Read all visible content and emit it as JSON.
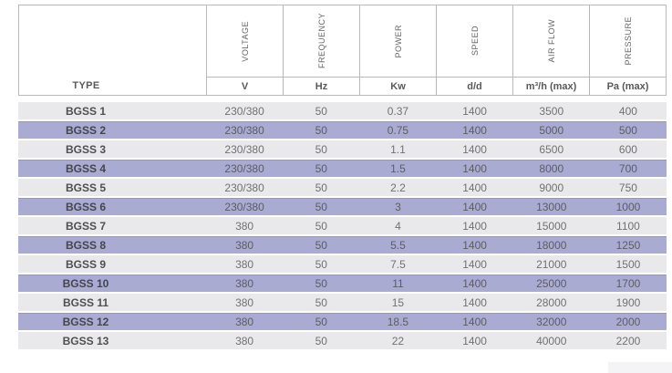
{
  "table": {
    "type_header": "TYPE",
    "columns": [
      {
        "label": "VOLTAGE",
        "unit": "V"
      },
      {
        "label": "FREQUENCY",
        "unit": "Hz"
      },
      {
        "label": "POWER",
        "unit": "Kw"
      },
      {
        "label": "SPEED",
        "unit": "d/d"
      },
      {
        "label": "AIR FLOW",
        "unit": "m³/h (max)"
      },
      {
        "label": "PRESSURE",
        "unit": "Pa (max)"
      }
    ],
    "rows": [
      {
        "type": "BGSS 1",
        "values": [
          "230/380",
          "50",
          "0.37",
          "1400",
          "3500",
          "400"
        ]
      },
      {
        "type": "BGSS 2",
        "values": [
          "230/380",
          "50",
          "0.75",
          "1400",
          "5000",
          "500"
        ]
      },
      {
        "type": "BGSS 3",
        "values": [
          "230/380",
          "50",
          "1.1",
          "1400",
          "6500",
          "600"
        ]
      },
      {
        "type": "BGSS 4",
        "values": [
          "230/380",
          "50",
          "1.5",
          "1400",
          "8000",
          "700"
        ]
      },
      {
        "type": "BGSS 5",
        "values": [
          "230/380",
          "50",
          "2.2",
          "1400",
          "9000",
          "750"
        ]
      },
      {
        "type": "BGSS 6",
        "values": [
          "230/380",
          "50",
          "3",
          "1400",
          "13000",
          "1000"
        ]
      },
      {
        "type": "BGSS 7",
        "values": [
          "380",
          "50",
          "4",
          "1400",
          "15000",
          "1100"
        ]
      },
      {
        "type": "BGSS 8",
        "values": [
          "380",
          "50",
          "5.5",
          "1400",
          "18000",
          "1250"
        ]
      },
      {
        "type": "BGSS 9",
        "values": [
          "380",
          "50",
          "7.5",
          "1400",
          "21000",
          "1500"
        ]
      },
      {
        "type": "BGSS 10",
        "values": [
          "380",
          "50",
          "11",
          "1400",
          "25000",
          "1700"
        ]
      },
      {
        "type": "BGSS 11",
        "values": [
          "380",
          "50",
          "15",
          "1400",
          "28000",
          "1900"
        ]
      },
      {
        "type": "BGSS 12",
        "values": [
          "380",
          "50",
          "18.5",
          "1400",
          "32000",
          "2000"
        ]
      },
      {
        "type": "BGSS 13",
        "values": [
          "380",
          "50",
          "22",
          "1400",
          "40000",
          "2200"
        ]
      }
    ]
  },
  "colors": {
    "stripe_light": "#e9e9eb",
    "stripe_accent": "#aaabd2",
    "accent_top_border": "#9496c4",
    "table_border": "#b9b9bb",
    "header_text": "#59595c",
    "value_text": "#717175"
  }
}
